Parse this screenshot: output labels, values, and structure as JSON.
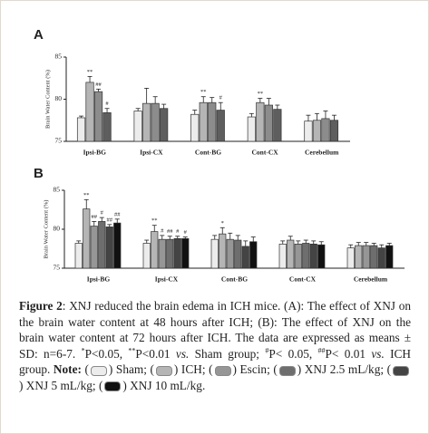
{
  "chart_data": [
    {
      "type": "bar",
      "panel": "A",
      "y_label": "Brain Water Content (%)",
      "categories": [
        "Ipsi-BG",
        "Ipsi-CX",
        "Cont-BG",
        "Cont-CX",
        "Cerebellum"
      ],
      "ylim": [
        75,
        85
      ],
      "yticks": [
        75,
        80,
        85
      ],
      "series": [
        {
          "color": "#ececec",
          "values": [
            77.8,
            78.6,
            78.2,
            77.9,
            77.4
          ],
          "errors": [
            0.2,
            0.3,
            0.5,
            0.4,
            0.7
          ],
          "significance": [
            null,
            null,
            null,
            null,
            null
          ]
        },
        {
          "color": "#b5b5b5",
          "values": [
            82.0,
            79.5,
            79.6,
            79.6,
            77.5
          ],
          "errors": [
            0.7,
            1.8,
            0.7,
            0.5,
            0.8
          ],
          "significance": [
            "**",
            null,
            "**",
            "**",
            null
          ]
        },
        {
          "color": "#8c8c8c",
          "values": [
            80.9,
            79.5,
            79.6,
            79.3,
            77.7
          ],
          "errors": [
            0.3,
            0.8,
            0.6,
            0.8,
            0.9
          ],
          "significance": [
            "##",
            null,
            null,
            null,
            null
          ]
        },
        {
          "color": "#5e5e5e",
          "values": [
            78.4,
            78.9,
            78.7,
            78.8,
            77.5
          ],
          "errors": [
            0.5,
            0.5,
            0.9,
            0.5,
            0.6
          ],
          "significance": [
            "#",
            null,
            "#",
            null,
            null
          ]
        }
      ]
    },
    {
      "type": "bar",
      "panel": "B",
      "y_label": "Brain Water Content (%)",
      "categories": [
        "Ipsi-BG",
        "Ipsi-CX",
        "Cont-BG",
        "Cont-CX",
        "Cerebellum"
      ],
      "ylim": [
        75,
        85
      ],
      "yticks": [
        75,
        80,
        85
      ],
      "series": [
        {
          "name": "Sham",
          "color": "#ececec",
          "values": [
            78.2,
            78.2,
            78.7,
            78.1,
            77.6
          ],
          "errors": [
            0.3,
            0.4,
            0.5,
            0.4,
            0.4
          ],
          "significance": [
            null,
            null,
            null,
            null,
            null
          ]
        },
        {
          "name": "ICH",
          "color": "#b5b5b5",
          "values": [
            82.6,
            79.7,
            79.4,
            78.6,
            77.9
          ],
          "errors": [
            1.2,
            0.8,
            0.8,
            0.5,
            0.4
          ],
          "significance": [
            "**",
            "**",
            "*",
            null,
            null
          ]
        },
        {
          "name": "Escin",
          "color": "#969696",
          "values": [
            80.4,
            78.7,
            78.7,
            78.1,
            77.9
          ],
          "errors": [
            0.6,
            0.5,
            0.8,
            0.4,
            0.4
          ],
          "significance": [
            "##",
            "#",
            null,
            null,
            null
          ]
        },
        {
          "name": "XNJ 2.5 mL/kg",
          "color": "#6e6e6e",
          "values": [
            81.0,
            78.7,
            78.6,
            78.2,
            77.9
          ],
          "errors": [
            0.5,
            0.4,
            0.6,
            0.4,
            0.3
          ],
          "significance": [
            "#",
            "##",
            null,
            null,
            null
          ]
        },
        {
          "name": "XNJ 5 mL/kg",
          "color": "#444444",
          "values": [
            80.3,
            78.8,
            77.8,
            78.1,
            77.6
          ],
          "errors": [
            0.3,
            0.3,
            0.7,
            0.4,
            0.4
          ],
          "significance": [
            "##",
            "#",
            null,
            null,
            null
          ]
        },
        {
          "name": "XNJ 10 mL/kg",
          "color": "#111111",
          "values": [
            80.8,
            78.8,
            78.4,
            78.0,
            77.9
          ],
          "errors": [
            0.5,
            0.2,
            0.6,
            0.4,
            0.3
          ],
          "significance": [
            "##",
            "#",
            null,
            null,
            null
          ]
        }
      ]
    }
  ],
  "caption": {
    "segments": [
      {
        "text": "Figure 2",
        "bold": true
      },
      {
        "text": ": XNJ reduced the brain edema in ICH mice. (A): The effect of XNJ on the brain water content at 48 hours after ICH; (B): The effect of XNJ on the brain water content at 72 hours after ICH. The data are expressed as means ± SD: n=6-7. "
      },
      {
        "text": "*",
        "sup": true
      },
      {
        "text": "P<0.05, "
      },
      {
        "text": "**",
        "sup": true
      },
      {
        "text": "P<0.01 "
      },
      {
        "text": "vs.",
        "italic": true
      },
      {
        "text": " Sham group; "
      },
      {
        "text": "#",
        "sup": true
      },
      {
        "text": "P< 0.05, "
      },
      {
        "text": "##",
        "sup": true
      },
      {
        "text": "P< 0.01 "
      },
      {
        "text": "vs.",
        "italic": true
      },
      {
        "text": " ICH group. "
      },
      {
        "text": "Note:",
        "bold": true
      }
    ],
    "legend_open": "(",
    "legend_close": ")",
    "legend_sep": ";",
    "legend_end": "."
  }
}
